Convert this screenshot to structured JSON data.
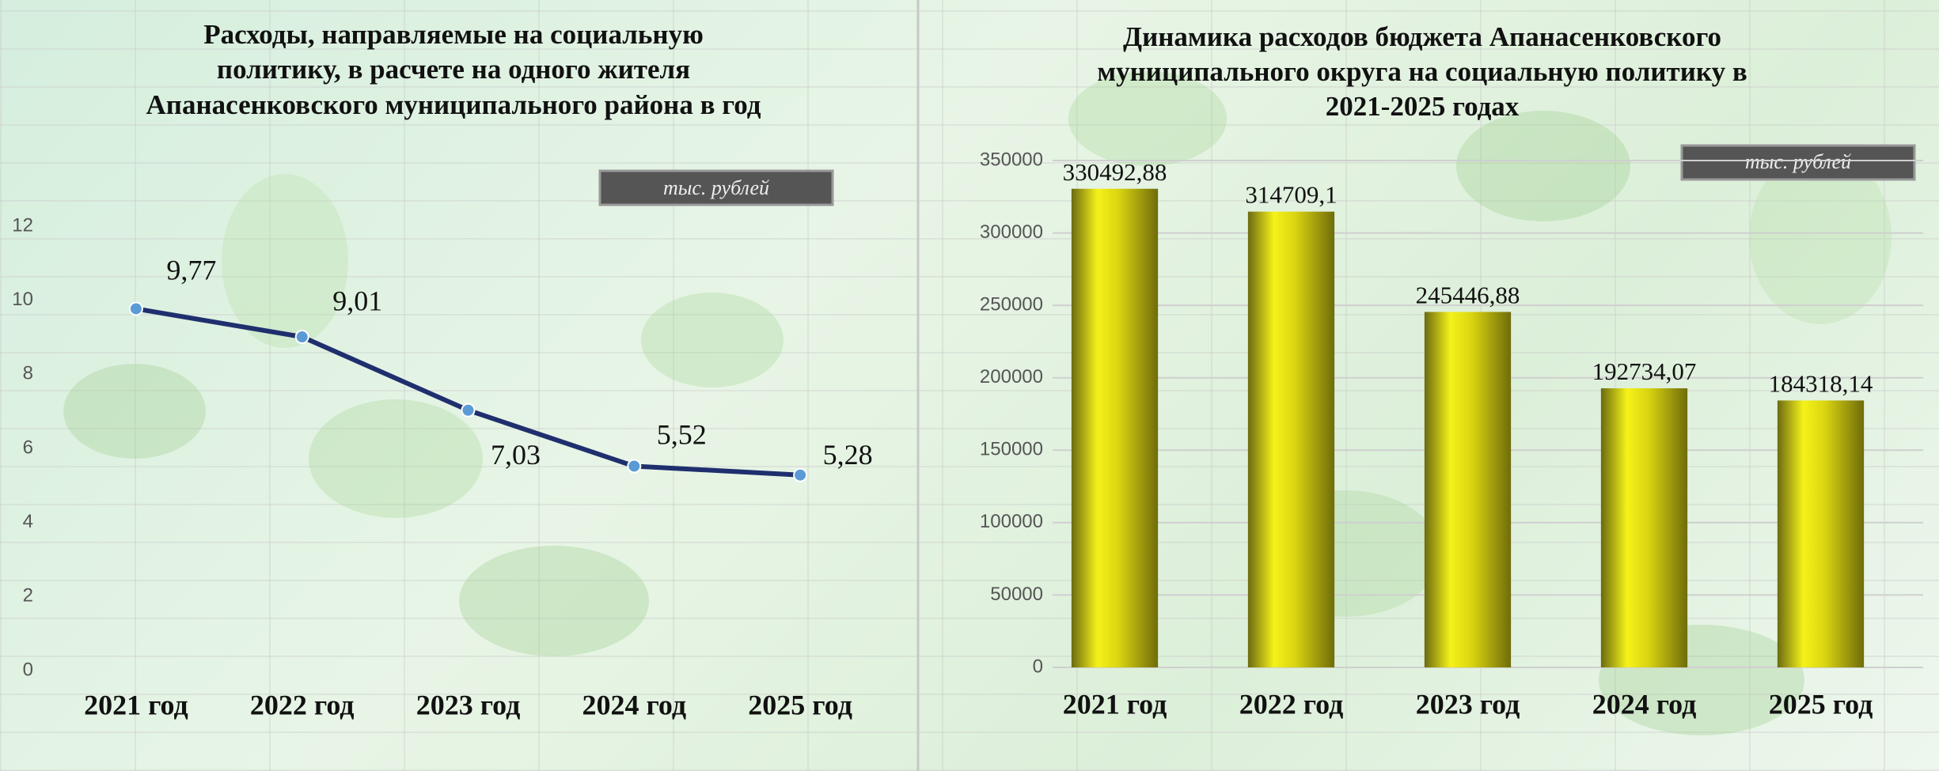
{
  "chart_data": [
    {
      "type": "line",
      "title": [
        "Расходы, направляемые на социальную",
        "политику, в расчете на одного жителя",
        "Апанасенковского муниципального района в год"
      ],
      "unit_label": "тыс. рублей",
      "categories": [
        "2021 год",
        "2022 год",
        "2023 год",
        "2024 год",
        "2025 год"
      ],
      "values": [
        9.77,
        9.01,
        7.03,
        5.52,
        5.28
      ],
      "value_labels": [
        "9,77",
        "9,01",
        "7,03",
        "5,52",
        "5,28"
      ],
      "color": "#1f2f6e",
      "ylim": [
        0,
        12
      ],
      "yticks": [
        0,
        2,
        4,
        6,
        8,
        10,
        12
      ],
      "grid": false
    },
    {
      "type": "bar",
      "title": [
        "Динамика расходов бюджета Апанасенковского",
        "муниципального округа на социальную политику в",
        "2021-2025 годах"
      ],
      "unit_label": "тыс. рублей",
      "categories": [
        "2021 год",
        "2022 год",
        "2023 год",
        "2024 год",
        "2025 год"
      ],
      "values": [
        330492.88,
        314709.1,
        245446.88,
        192734.07,
        184318.14
      ],
      "value_labels": [
        "330492,88",
        "314709,1",
        "245446,88",
        "192734,07",
        "184318,14"
      ],
      "color": "#e0dc12",
      "ylim": [
        0,
        350000
      ],
      "yticks": [
        0,
        50000,
        100000,
        150000,
        200000,
        250000,
        300000,
        350000
      ],
      "grid": true
    }
  ]
}
